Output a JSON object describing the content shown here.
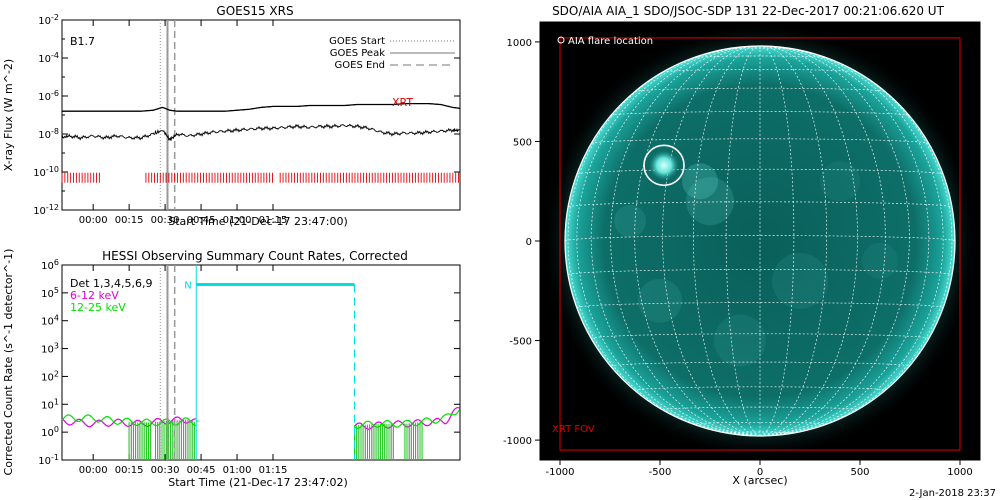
{
  "chart_data": [
    {
      "type": "line",
      "title": "GOES15 XRS",
      "xlabel": "Start Time (21-Dec-17 23:47:00)",
      "ylabel": "X-ray Flux (W m^-2)",
      "ylim_log10": [
        -12,
        -2
      ],
      "x_ticks": [
        "00:00",
        "00:15",
        "00:30",
        "00:45",
        "01:00",
        "01:15"
      ],
      "y_ticks": [
        "10^-2",
        "10^-4",
        "10^-6",
        "10^-8",
        "10^-10",
        "10^-12"
      ],
      "annotation_class": "B1.7",
      "xrt_label": "XRT",
      "legend": [
        "GOES Start",
        "GOES Peak",
        "GOES End"
      ],
      "events_minutes": {
        "start": 28,
        "peak": 31,
        "end": 34
      },
      "series": [
        {
          "values": [
            -6.8,
            -6.8,
            -6.8,
            -6.8,
            -6.8,
            -6.8,
            -6.8,
            -6.8,
            -6.75,
            -6.6,
            -6.75,
            -6.8,
            -6.8,
            -6.8,
            -6.8,
            -6.8,
            -6.75,
            -6.7,
            -6.6,
            -6.55,
            -6.55,
            -6.55,
            -6.5,
            -6.5,
            -6.5,
            -6.5,
            -6.45,
            -6.45,
            -6.45,
            -6.45,
            -6.4,
            -6.4,
            -6.4,
            -6.45,
            -6.6,
            -6.65
          ],
          "x_minutes": [
            -13,
            -10,
            -5,
            0,
            5,
            10,
            15,
            20,
            25,
            29,
            32,
            35,
            40,
            45,
            50,
            55,
            60,
            65,
            70,
            75,
            80,
            85,
            90,
            95,
            100,
            105,
            110,
            115,
            120,
            125,
            130,
            135,
            140,
            145,
            150,
            153
          ]
        },
        {
          "values": [
            -8.2,
            -8.1,
            -8.2,
            -8.1,
            -8.2,
            -8.1,
            -8.2,
            -8.2,
            -8.0,
            -7.8,
            -8.3,
            -8.0,
            -8.1,
            -8.0,
            -7.9,
            -7.85,
            -7.8,
            -7.75,
            -7.7,
            -7.7,
            -7.65,
            -7.6,
            -7.65,
            -7.6,
            -7.6,
            -7.55,
            -7.6,
            -7.7,
            -7.9,
            -8.0,
            -7.95,
            -7.95,
            -7.9,
            -7.85,
            -7.8,
            -7.8
          ],
          "x_minutes": [
            -13,
            -10,
            -5,
            0,
            5,
            10,
            15,
            20,
            25,
            29,
            32,
            35,
            40,
            45,
            50,
            55,
            60,
            65,
            70,
            75,
            80,
            85,
            90,
            95,
            100,
            105,
            110,
            115,
            120,
            125,
            130,
            135,
            140,
            145,
            150,
            153
          ]
        }
      ],
      "xrt_coverage_minutes": [
        [
          -13,
          3
        ],
        [
          22,
          76
        ],
        [
          78,
          153
        ]
      ]
    },
    {
      "type": "line",
      "title": "HESSI Observing Summary Count Rates, Corrected",
      "xlabel": "Start Time (21-Dec-17 23:47:02)",
      "ylabel": "Corrected Count Rate (s^-1 detector^-1)",
      "ylim_log10": [
        -1,
        6
      ],
      "x_ticks": [
        "00:00",
        "00:15",
        "00:30",
        "00:45",
        "01:00",
        "01:15"
      ],
      "y_ticks": [
        "10^6",
        "10^5",
        "10^4",
        "10^3",
        "10^2",
        "10^1",
        "10^0",
        "10^-1"
      ],
      "legend": [
        {
          "label": "Det 1,3,4,5,6,9",
          "color": "#000000"
        },
        {
          "label": "6-12 keV",
          "color": "#e000e0"
        },
        {
          "label": "12-25 keV",
          "color": "#00e000"
        }
      ],
      "night_label": "N",
      "night_minutes": [
        43,
        109
      ],
      "events_minutes": {
        "start": 28,
        "peak": 31,
        "end": 34
      },
      "series_6_12_log10": [
        [
          -13,
          0.4
        ],
        [
          0,
          0.3
        ],
        [
          10,
          0.35
        ],
        [
          20,
          0.3
        ],
        [
          30,
          0.4
        ],
        [
          40,
          0.45
        ],
        [
          43,
          0.35
        ],
        [
          109,
          0.2
        ],
        [
          120,
          0.25
        ],
        [
          130,
          0.3
        ],
        [
          140,
          0.35
        ],
        [
          147,
          0.4
        ],
        [
          150,
          0.7
        ],
        [
          153,
          0.8
        ]
      ],
      "series_12_25_log10": [
        [
          -13,
          0.5
        ],
        [
          0,
          0.5
        ],
        [
          10,
          0.4
        ],
        [
          20,
          0.35
        ],
        [
          30,
          0.35
        ],
        [
          40,
          0.4
        ],
        [
          43,
          0.35
        ],
        [
          109,
          0.25
        ],
        [
          120,
          0.3
        ],
        [
          130,
          0.3
        ],
        [
          140,
          0.4
        ],
        [
          147,
          0.5
        ],
        [
          150,
          0.7
        ],
        [
          153,
          0.85
        ]
      ]
    },
    {
      "type": "scatter",
      "title": "SDO/AIA AIA_1 SDO/JSOC-SDP 131 22-Dec-2017 00:21:06.620 UT",
      "xlabel": "X (arcsec)",
      "xlim": [
        -1100,
        1100
      ],
      "ylim": [
        -1100,
        1100
      ],
      "x_ticks": [
        "-1000",
        "-500",
        "0",
        "500",
        "1000"
      ],
      "y_ticks": [
        "1000",
        "500",
        "0",
        "-500",
        "-1000"
      ],
      "legend_item": "AIA flare location",
      "fov_label": "XRT FOV",
      "flare_location": {
        "x": -480,
        "y": 380,
        "radius": 100
      },
      "solar_radius_arcsec": 975,
      "fov_box": [
        -1000,
        -1050,
        1000,
        1020
      ]
    }
  ],
  "footer": {
    "date_stamp": "2-Jan-2018 23:37"
  },
  "colors": {
    "xrt": "#e00000",
    "night": "#00e0e0",
    "event_lines": "#888888",
    "sun": "#0c6b66",
    "fov": "#e00000"
  }
}
